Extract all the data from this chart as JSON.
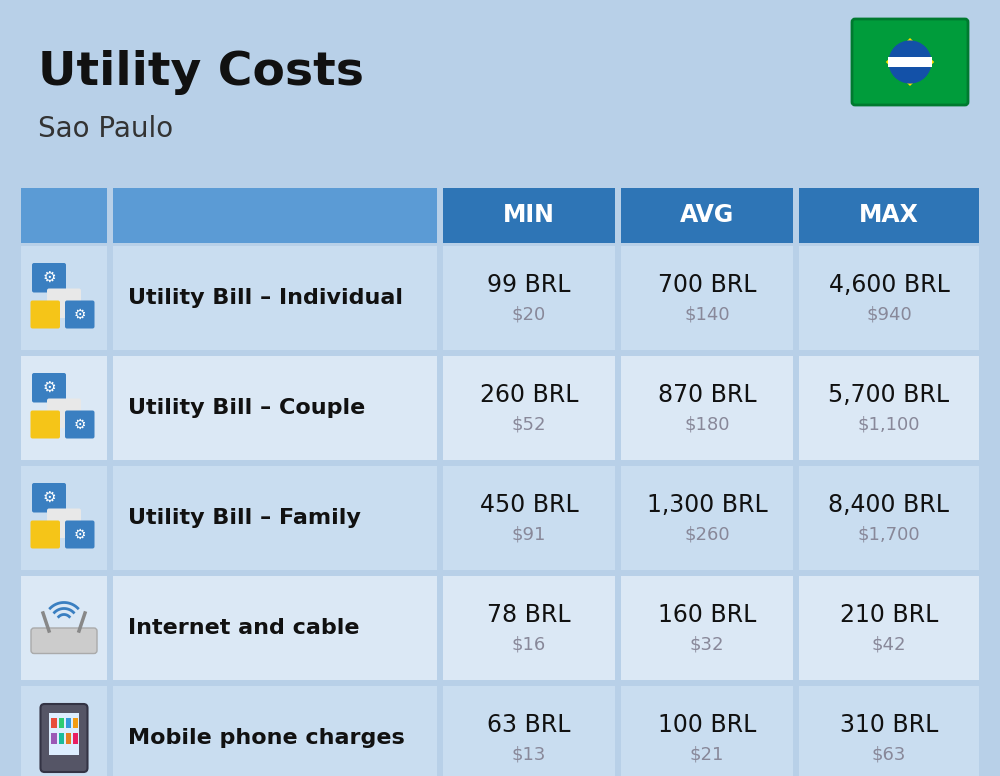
{
  "title": "Utility Costs",
  "subtitle": "Sao Paulo",
  "background_color": "#b8d0e8",
  "header_col_color": "#5b9bd5",
  "header_data_color": "#2e75b6",
  "row_color_odd": "#c9ddf0",
  "row_color_even": "#dbe8f5",
  "header_text_color": "#ffffff",
  "label_color": "#111111",
  "value_color": "#111111",
  "usd_color": "#888899",
  "title_fontsize": 34,
  "subtitle_fontsize": 20,
  "header_fontsize": 17,
  "label_fontsize": 16,
  "value_fontsize": 17,
  "usd_fontsize": 13,
  "rows": [
    {
      "label": "Utility Bill – Individual",
      "min_brl": "99 BRL",
      "min_usd": "$20",
      "avg_brl": "700 BRL",
      "avg_usd": "$140",
      "max_brl": "4,600 BRL",
      "max_usd": "$940"
    },
    {
      "label": "Utility Bill – Couple",
      "min_brl": "260 BRL",
      "min_usd": "$52",
      "avg_brl": "870 BRL",
      "avg_usd": "$180",
      "max_brl": "5,700 BRL",
      "max_usd": "$1,100"
    },
    {
      "label": "Utility Bill – Family",
      "min_brl": "450 BRL",
      "min_usd": "$91",
      "avg_brl": "1,300 BRL",
      "avg_usd": "$260",
      "max_brl": "8,400 BRL",
      "max_usd": "$1,700"
    },
    {
      "label": "Internet and cable",
      "min_brl": "78 BRL",
      "min_usd": "$16",
      "avg_brl": "160 BRL",
      "avg_usd": "$32",
      "max_brl": "210 BRL",
      "max_usd": "$42"
    },
    {
      "label": "Mobile phone charges",
      "min_brl": "63 BRL",
      "min_usd": "$13",
      "avg_brl": "100 BRL",
      "avg_usd": "$21",
      "max_brl": "310 BRL",
      "max_usd": "$63"
    }
  ]
}
